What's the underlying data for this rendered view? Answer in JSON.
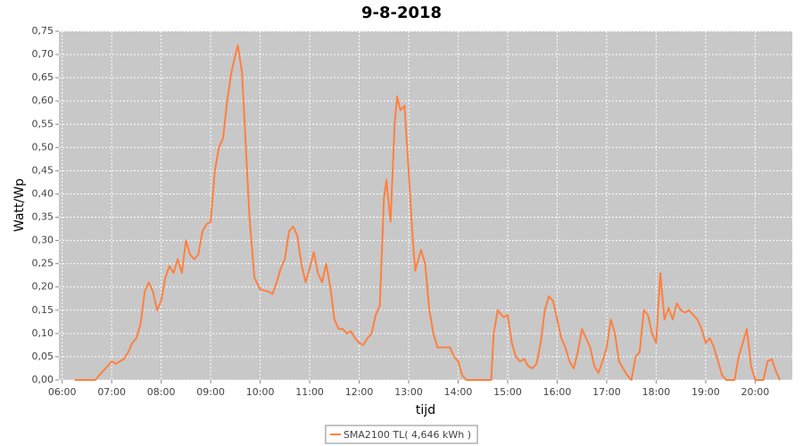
{
  "chart_data": {
    "type": "line",
    "title": "9-8-2018",
    "x_label": "tijd",
    "y_label": "Watt/Wp",
    "series": [
      {
        "name": "SMA2100 TL( 4,646 kWh )",
        "color": "#ff8040",
        "x": [
          "06:15",
          "06:40",
          "06:45",
          "06:50",
          "06:55",
          "07:00",
          "07:05",
          "07:10",
          "07:15",
          "07:20",
          "07:25",
          "07:30",
          "07:35",
          "07:40",
          "07:45",
          "07:50",
          "07:55",
          "08:00",
          "08:05",
          "08:10",
          "08:15",
          "08:20",
          "08:25",
          "08:30",
          "08:35",
          "08:40",
          "08:45",
          "08:50",
          "08:55",
          "09:00",
          "09:05",
          "09:10",
          "09:15",
          "09:20",
          "09:25",
          "09:30",
          "09:33",
          "09:38",
          "09:47",
          "09:53",
          "10:00",
          "10:10",
          "10:15",
          "10:20",
          "10:25",
          "10:30",
          "10:35",
          "10:40",
          "10:45",
          "10:50",
          "10:55",
          "11:00",
          "11:05",
          "11:10",
          "11:15",
          "11:20",
          "11:25",
          "11:30",
          "11:35",
          "11:40",
          "11:45",
          "11:50",
          "11:55",
          "12:00",
          "12:05",
          "12:10",
          "12:15",
          "12:20",
          "12:25",
          "12:30",
          "12:33",
          "12:38",
          "12:43",
          "12:46",
          "12:50",
          "12:55",
          "13:00",
          "13:05",
          "13:08",
          "13:15",
          "13:20",
          "13:25",
          "13:30",
          "13:35",
          "13:50",
          "13:55",
          "14:00",
          "14:05",
          "14:10",
          "14:40",
          "14:43",
          "14:48",
          "14:55",
          "15:00",
          "15:05",
          "15:10",
          "15:15",
          "15:20",
          "15:25",
          "15:30",
          "15:35",
          "15:40",
          "15:45",
          "15:50",
          "15:55",
          "16:00",
          "16:05",
          "16:10",
          "16:15",
          "16:20",
          "16:25",
          "16:30",
          "16:35",
          "16:40",
          "16:45",
          "16:50",
          "16:55",
          "17:00",
          "17:05",
          "17:10",
          "17:15",
          "17:20",
          "17:25",
          "17:30",
          "17:35",
          "17:40",
          "17:45",
          "17:50",
          "17:55",
          "18:00",
          "18:05",
          "18:10",
          "18:15",
          "18:20",
          "18:25",
          "18:30",
          "18:35",
          "18:40",
          "18:45",
          "18:50",
          "18:55",
          "19:00",
          "19:05",
          "19:10",
          "19:15",
          "19:20",
          "19:25",
          "19:35",
          "19:40",
          "19:45",
          "19:50",
          "19:55",
          "20:00",
          "20:10",
          "20:15",
          "20:20",
          "20:25",
          "20:30"
        ],
        "values": [
          0,
          0,
          0.01,
          0.02,
          0.03,
          0.04,
          0.035,
          0.04,
          0.045,
          0.06,
          0.08,
          0.09,
          0.12,
          0.19,
          0.21,
          0.19,
          0.15,
          0.17,
          0.22,
          0.245,
          0.23,
          0.26,
          0.23,
          0.3,
          0.27,
          0.26,
          0.27,
          0.32,
          0.335,
          0.34,
          0.45,
          0.5,
          0.52,
          0.6,
          0.66,
          0.7,
          0.72,
          0.66,
          0.35,
          0.22,
          0.195,
          0.19,
          0.185,
          0.21,
          0.24,
          0.26,
          0.32,
          0.33,
          0.31,
          0.25,
          0.21,
          0.24,
          0.275,
          0.23,
          0.21,
          0.25,
          0.2,
          0.13,
          0.11,
          0.11,
          0.1,
          0.105,
          0.09,
          0.08,
          0.075,
          0.09,
          0.1,
          0.14,
          0.16,
          0.39,
          0.43,
          0.34,
          0.55,
          0.61,
          0.58,
          0.59,
          0.45,
          0.3,
          0.235,
          0.28,
          0.25,
          0.15,
          0.1,
          0.07,
          0.07,
          0.05,
          0.04,
          0.01,
          0,
          0,
          0.1,
          0.15,
          0.135,
          0.14,
          0.08,
          0.05,
          0.04,
          0.045,
          0.03,
          0.025,
          0.035,
          0.08,
          0.15,
          0.18,
          0.17,
          0.13,
          0.09,
          0.07,
          0.04,
          0.025,
          0.06,
          0.11,
          0.09,
          0.07,
          0.03,
          0.015,
          0.04,
          0.07,
          0.13,
          0.1,
          0.04,
          0.025,
          0.01,
          0,
          0.05,
          0.06,
          0.15,
          0.14,
          0.1,
          0.08,
          0.23,
          0.13,
          0.155,
          0.13,
          0.165,
          0.15,
          0.145,
          0.15,
          0.14,
          0.13,
          0.11,
          0.08,
          0.09,
          0.07,
          0.04,
          0.01,
          0,
          0,
          0.05,
          0.08,
          0.11,
          0.03,
          0,
          0,
          0.04,
          0.045,
          0.02,
          0
        ]
      }
    ],
    "xlim": [
      "05:56",
      "20:45"
    ],
    "xticks": [
      "06:00",
      "07:00",
      "08:00",
      "09:00",
      "10:00",
      "11:00",
      "12:00",
      "13:00",
      "14:00",
      "15:00",
      "16:00",
      "17:00",
      "18:00",
      "19:00",
      "20:00"
    ],
    "ylim": [
      0,
      0.75
    ],
    "yticks": [
      {
        "value": 0,
        "label": "0,00"
      },
      {
        "value": 0.05,
        "label": "0,05"
      },
      {
        "value": 0.1,
        "label": "0,10"
      },
      {
        "value": 0.15,
        "label": "0,15"
      },
      {
        "value": 0.2,
        "label": "0,20"
      },
      {
        "value": 0.25,
        "label": "0,25"
      },
      {
        "value": 0.3,
        "label": "0,30"
      },
      {
        "value": 0.35,
        "label": "0,35"
      },
      {
        "value": 0.4,
        "label": "0,40"
      },
      {
        "value": 0.45,
        "label": "0,45"
      },
      {
        "value": 0.5,
        "label": "0,50"
      },
      {
        "value": 0.55,
        "label": "0,55"
      },
      {
        "value": 0.6,
        "label": "0,60"
      },
      {
        "value": 0.65,
        "label": "0,65"
      },
      {
        "value": 0.7,
        "label": "0,70"
      },
      {
        "value": 0.75,
        "label": "0,75"
      }
    ],
    "grid": true,
    "legend": "bottom"
  }
}
